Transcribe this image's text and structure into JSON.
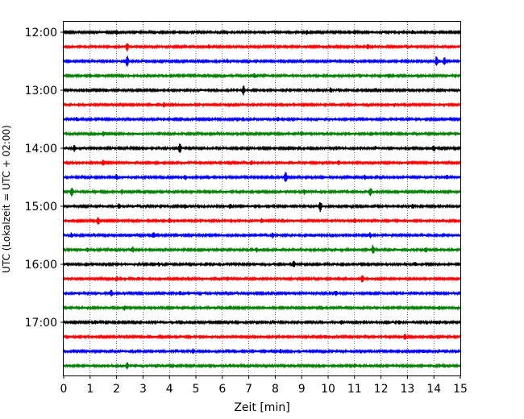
{
  "chart_data": {
    "type": "line",
    "title": "",
    "xlabel": "Zeit  [min]",
    "ylabel": "UTC (Lokalzeit = UTC + 02:00)",
    "xlim": [
      0,
      15
    ],
    "x_ticks": [
      "0",
      "1",
      "2",
      "3",
      "4",
      "5",
      "6",
      "7",
      "8",
      "9",
      "10",
      "11",
      "12",
      "13",
      "14",
      "15"
    ],
    "y_ticks": [
      "12:00",
      "13:00",
      "14:00",
      "15:00",
      "16:00",
      "17:00"
    ],
    "grid": {
      "x": true,
      "style": "dotted"
    },
    "trace_interval_min": 15,
    "trace_colors": [
      "#000000",
      "#ff0000",
      "#0000ff",
      "#008000"
    ],
    "series": [
      {
        "start": "12:00",
        "color": "#000000",
        "events": [
          [
            2.0,
            0.6
          ],
          [
            9.2,
            0.5
          ],
          [
            11.0,
            0.5
          ],
          [
            13.2,
            0.4
          ]
        ]
      },
      {
        "start": "12:15",
        "color": "#ff0000",
        "events": [
          [
            2.4,
            1.0
          ],
          [
            5.5,
            0.4
          ],
          [
            11.5,
            0.4
          ]
        ]
      },
      {
        "start": "12:30",
        "color": "#0000ff",
        "events": [
          [
            2.4,
            1.3
          ],
          [
            6.2,
            0.4
          ],
          [
            14.1,
            1.0
          ],
          [
            14.4,
            0.9
          ]
        ]
      },
      {
        "start": "12:45",
        "color": "#008000",
        "events": [
          [
            1.0,
            0.4
          ],
          [
            7.2,
            0.5
          ],
          [
            12.3,
            0.4
          ]
        ]
      },
      {
        "start": "13:00",
        "color": "#000000",
        "events": [
          [
            6.8,
            1.1
          ],
          [
            10.1,
            0.5
          ],
          [
            1.6,
            0.3
          ]
        ]
      },
      {
        "start": "13:15",
        "color": "#ff0000",
        "events": [
          [
            3.8,
            0.5
          ],
          [
            12.5,
            0.3
          ]
        ]
      },
      {
        "start": "13:30",
        "color": "#0000ff",
        "events": [
          [
            0.5,
            0.3
          ],
          [
            8.1,
            0.4
          ]
        ]
      },
      {
        "start": "13:45",
        "color": "#008000",
        "events": [
          [
            1.5,
            0.5
          ],
          [
            9.0,
            0.4
          ],
          [
            12.4,
            0.4
          ]
        ]
      },
      {
        "start": "14:00",
        "color": "#000000",
        "events": [
          [
            0.4,
            0.7
          ],
          [
            3.0,
            0.4
          ],
          [
            4.4,
            1.1
          ],
          [
            8.5,
            0.4
          ],
          [
            14.0,
            0.6
          ],
          [
            14.3,
            0.4
          ]
        ]
      },
      {
        "start": "14:15",
        "color": "#ff0000",
        "events": [
          [
            1.5,
            0.6
          ],
          [
            7.1,
            0.5
          ],
          [
            10.4,
            0.5
          ]
        ]
      },
      {
        "start": "14:30",
        "color": "#0000ff",
        "events": [
          [
            2.0,
            0.6
          ],
          [
            4.6,
            0.5
          ],
          [
            8.4,
            1.3
          ],
          [
            11.4,
            0.5
          ],
          [
            14.5,
            0.5
          ]
        ]
      },
      {
        "start": "14:45",
        "color": "#008000",
        "events": [
          [
            0.3,
            1.1
          ],
          [
            2.2,
            0.5
          ],
          [
            9.1,
            0.5
          ],
          [
            11.6,
            0.9
          ]
        ]
      },
      {
        "start": "15:00",
        "color": "#000000",
        "events": [
          [
            2.1,
            0.6
          ],
          [
            4.6,
            0.5
          ],
          [
            6.3,
            0.5
          ],
          [
            9.7,
            1.4
          ],
          [
            13.2,
            0.5
          ]
        ]
      },
      {
        "start": "15:15",
        "color": "#ff0000",
        "events": [
          [
            1.3,
            0.9
          ],
          [
            4.0,
            0.5
          ],
          [
            7.5,
            0.5
          ],
          [
            11.0,
            0.5
          ]
        ]
      },
      {
        "start": "15:30",
        "color": "#0000ff",
        "events": [
          [
            0.3,
            0.5
          ],
          [
            3.4,
            0.6
          ],
          [
            7.9,
            0.5
          ],
          [
            11.6,
            0.5
          ]
        ]
      },
      {
        "start": "15:45",
        "color": "#008000",
        "events": [
          [
            0.9,
            0.5
          ],
          [
            2.6,
            0.6
          ],
          [
            7.3,
            0.5
          ],
          [
            11.7,
            1.1
          ],
          [
            13.7,
            0.5
          ]
        ]
      },
      {
        "start": "16:00",
        "color": "#000000",
        "events": [
          [
            3.6,
            0.4
          ],
          [
            8.7,
            0.7
          ],
          [
            13.3,
            0.4
          ]
        ]
      },
      {
        "start": "16:15",
        "color": "#ff0000",
        "events": [
          [
            2.0,
            0.5
          ],
          [
            6.2,
            0.4
          ],
          [
            11.3,
            0.9
          ]
        ]
      },
      {
        "start": "16:30",
        "color": "#0000ff",
        "events": [
          [
            1.8,
            0.6
          ],
          [
            4.4,
            0.4
          ],
          [
            10.3,
            0.5
          ]
        ]
      },
      {
        "start": "16:45",
        "color": "#008000",
        "events": [
          [
            2.3,
            0.5
          ],
          [
            6.3,
            0.4
          ],
          [
            14.2,
            0.3
          ]
        ]
      },
      {
        "start": "17:00",
        "color": "#000000",
        "events": [
          [
            1.2,
            0.4
          ],
          [
            10.5,
            0.4
          ],
          [
            12.7,
            0.4
          ],
          [
            14.1,
            0.3
          ]
        ]
      },
      {
        "start": "17:15",
        "color": "#ff0000",
        "events": [
          [
            3.2,
            0.3
          ],
          [
            9.9,
            0.4
          ],
          [
            12.9,
            0.6
          ]
        ]
      },
      {
        "start": "17:30",
        "color": "#0000ff",
        "events": [
          [
            4.9,
            0.5
          ],
          [
            8.2,
            0.4
          ],
          [
            13.6,
            0.3
          ]
        ]
      },
      {
        "start": "17:45",
        "color": "#008000",
        "events": [
          [
            2.4,
            0.7
          ],
          [
            6.3,
            0.3
          ],
          [
            11.0,
            0.3
          ]
        ]
      }
    ]
  }
}
